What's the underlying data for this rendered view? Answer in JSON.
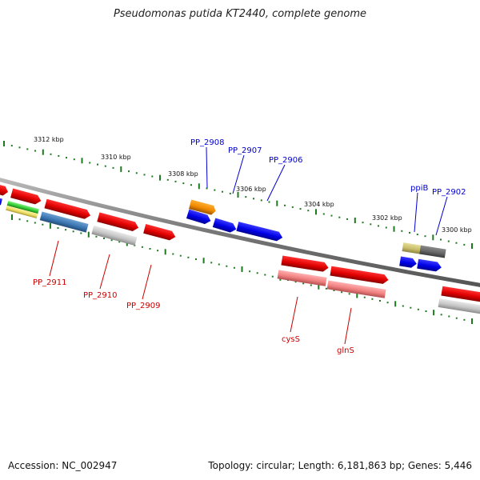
{
  "title": "Pseudomonas putida KT2440, complete genome",
  "footer": {
    "accession": "Accession: NC_002947",
    "summary": "Topology: circular; Length: 6,181,863 bp; Genes: 5,446"
  },
  "ticks": [
    {
      "label": "3312 kbp"
    },
    {
      "label": "3310 kbp"
    },
    {
      "label": "3308 kbp"
    },
    {
      "label": "3306 kbp"
    },
    {
      "label": "3304 kbp"
    },
    {
      "label": "3302 kbp"
    },
    {
      "label": "3300 kbp"
    }
  ],
  "colors": {
    "forward_label": "#0000cc",
    "reverse_label": "#cc0000",
    "backbone": "#888888",
    "tick": "#1e7a1e"
  },
  "labels_top": [
    {
      "text": "PP_2908"
    },
    {
      "text": "PP_2907"
    },
    {
      "text": "PP_2906"
    },
    {
      "text": "ppiB"
    },
    {
      "text": "PP_2902"
    }
  ],
  "labels_bottom": [
    {
      "text": "PP_2911"
    },
    {
      "text": "PP_2910"
    },
    {
      "text": "PP_2909"
    },
    {
      "text": "cysS"
    },
    {
      "text": "glnS"
    }
  ]
}
